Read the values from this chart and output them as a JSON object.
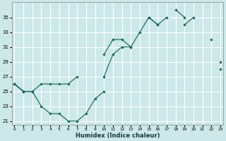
{
  "xlabel": "Humidex (Indice chaleur)",
  "bg_color": "#cce8e8",
  "grid_color": "#ffffff",
  "line_color": "#1a6b5a",
  "line1": {
    "x": [
      0,
      1,
      2,
      3,
      4,
      5,
      6,
      7,
      8,
      9,
      10,
      11,
      12,
      13,
      14,
      15,
      16,
      17,
      18,
      19,
      20,
      21,
      22,
      23
    ],
    "y": [
      26,
      25,
      25,
      null,
      null,
      null,
      null,
      null,
      null,
      null,
      30,
      32,
      32,
      31,
      null,
      35,
      34,
      null,
      36,
      35,
      null,
      null,
      null,
      29
    ]
  },
  "line2": {
    "x": [
      0,
      1,
      2,
      3,
      4,
      5,
      6,
      7,
      8,
      9,
      10,
      11,
      12,
      13,
      14,
      15,
      16,
      17,
      18,
      19,
      20,
      21,
      22,
      23
    ],
    "y": [
      26,
      25,
      25,
      26,
      26,
      26,
      26,
      27,
      null,
      null,
      27,
      30,
      31,
      31,
      33,
      35,
      34,
      35,
      null,
      34,
      35,
      null,
      32,
      null
    ]
  },
  "line3": {
    "x": [
      0,
      1,
      2,
      3,
      4,
      5,
      6,
      7,
      8,
      9,
      10,
      11,
      12,
      13,
      14,
      15,
      16,
      17,
      18,
      19,
      20,
      21,
      22,
      23
    ],
    "y": [
      26,
      25,
      25,
      23,
      22,
      22,
      21,
      21,
      22,
      24,
      25,
      null,
      null,
      null,
      null,
      null,
      null,
      null,
      null,
      null,
      null,
      null,
      null,
      28
    ]
  },
  "ylim": [
    20.5,
    37
  ],
  "xlim": [
    -0.3,
    23.3
  ],
  "yticks": [
    21,
    23,
    25,
    27,
    29,
    31,
    33,
    35
  ],
  "xticks": [
    0,
    1,
    2,
    3,
    4,
    5,
    6,
    7,
    8,
    9,
    10,
    11,
    12,
    13,
    14,
    15,
    16,
    17,
    18,
    19,
    20,
    21,
    22,
    23
  ]
}
